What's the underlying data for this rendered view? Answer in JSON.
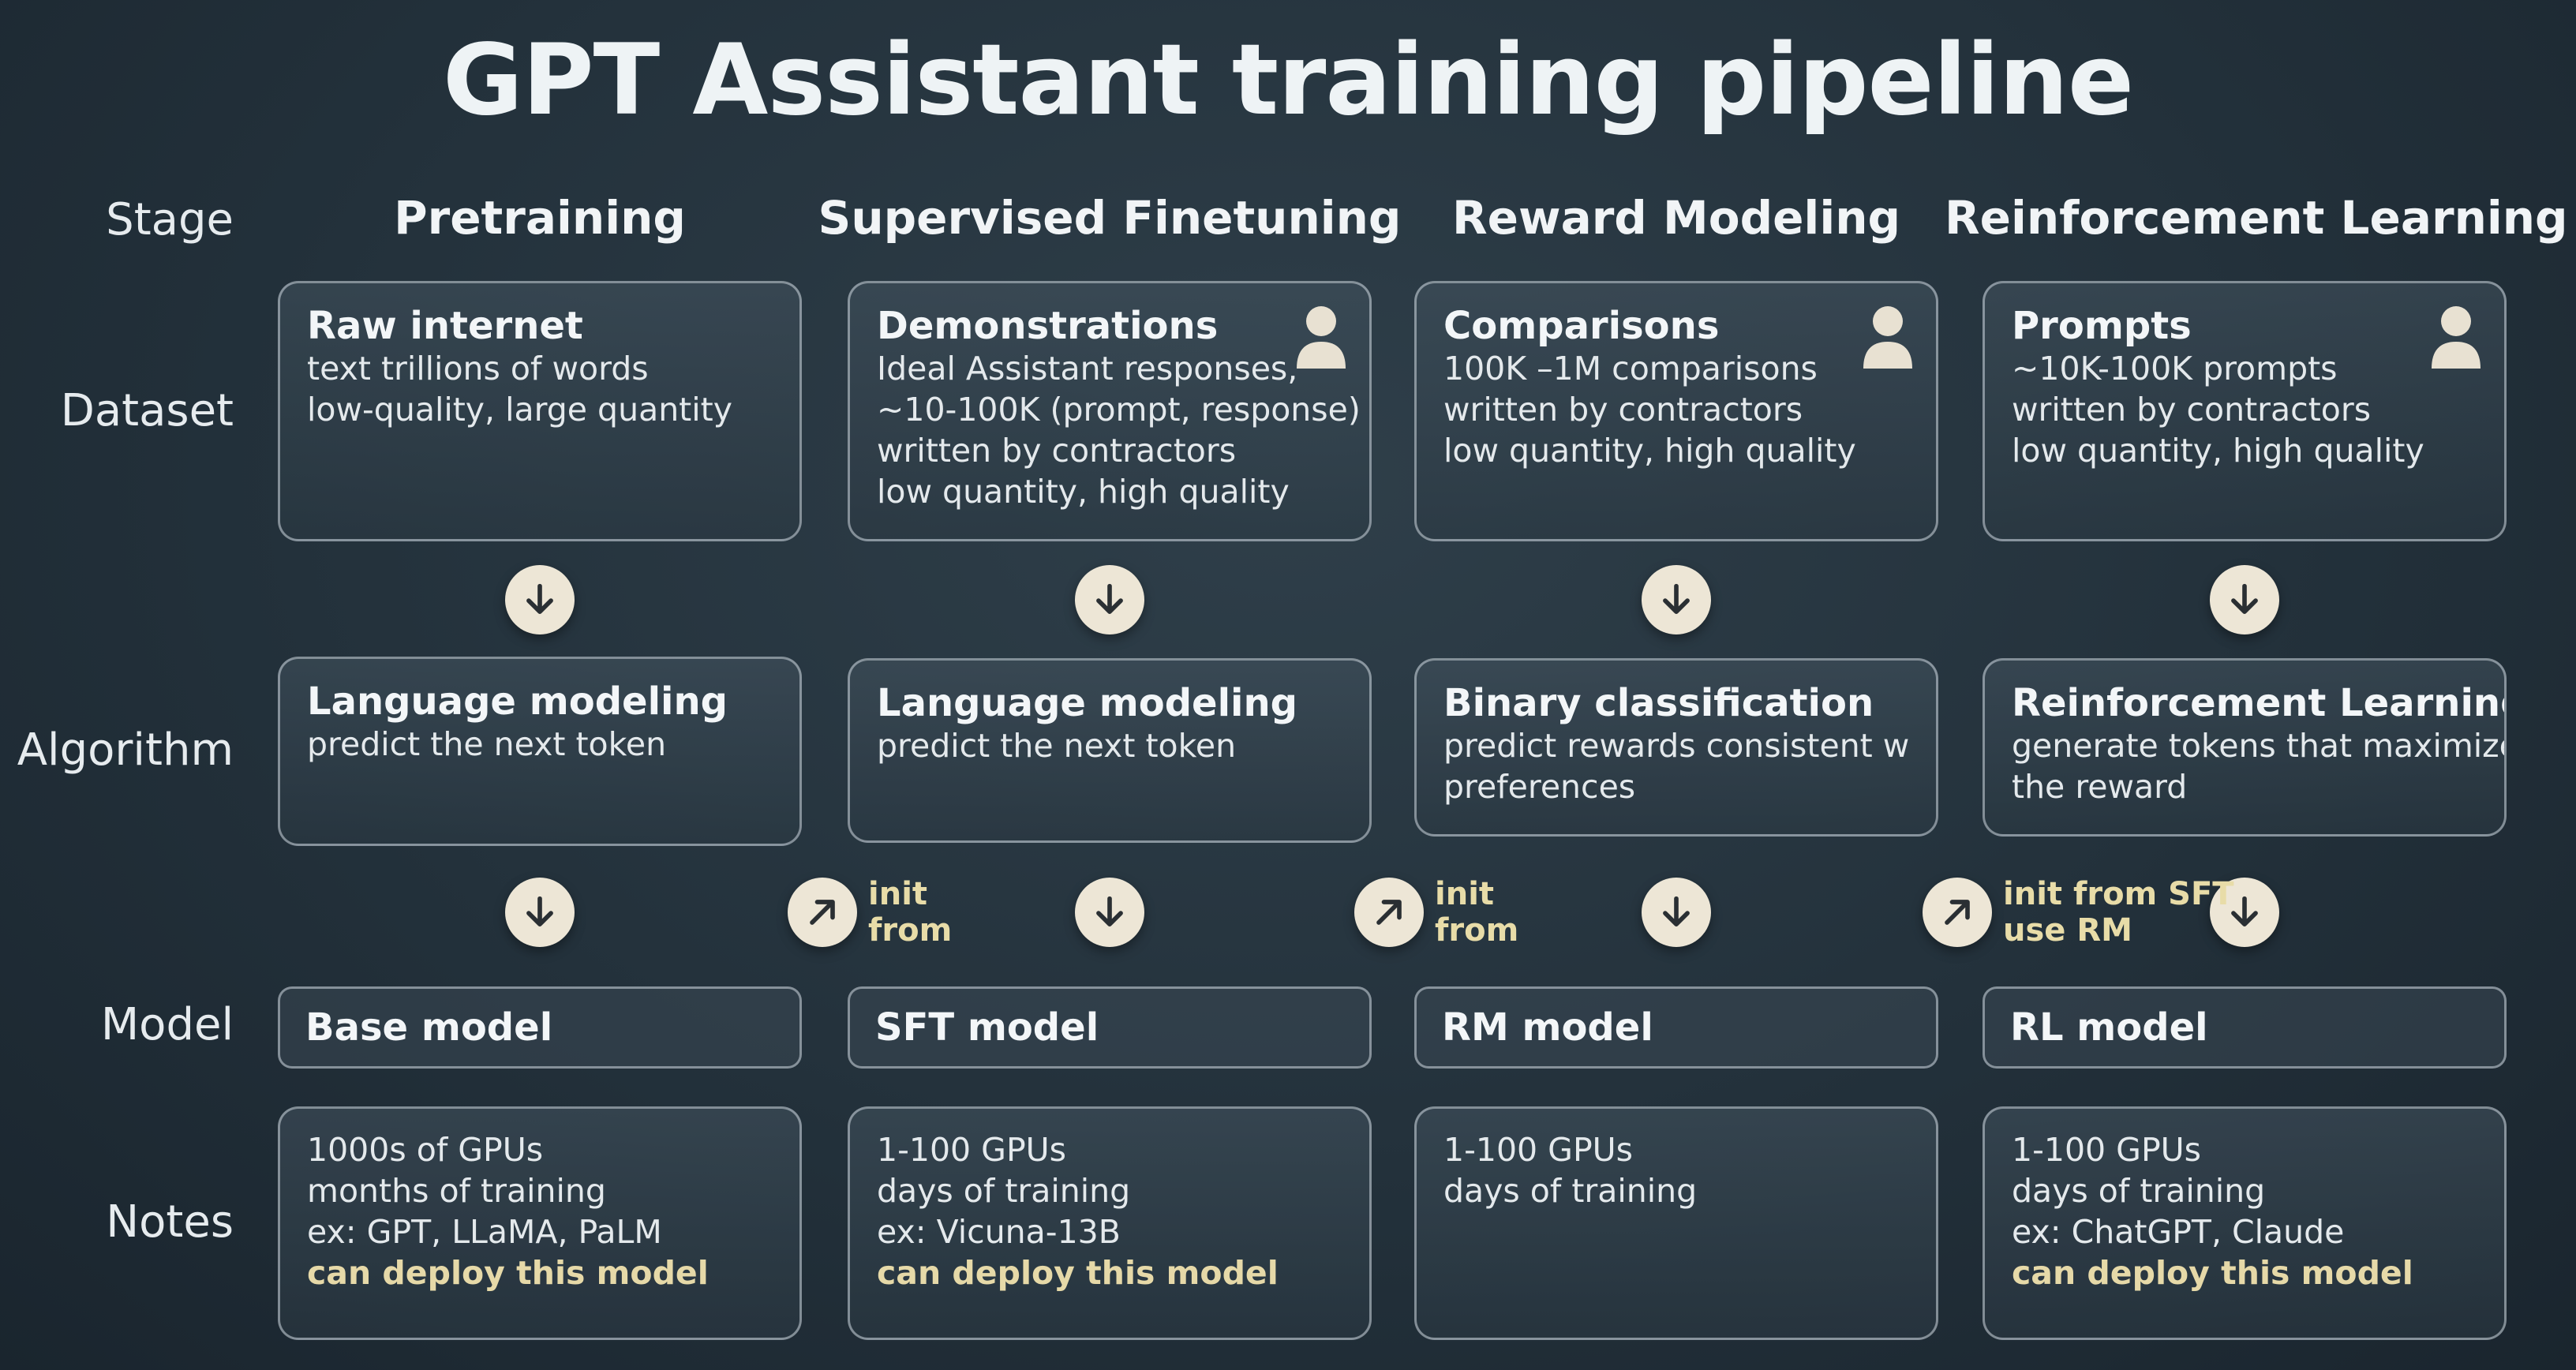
{
  "title": "GPT Assistant training pipeline",
  "row_labels": {
    "stage": "Stage",
    "dataset": "Dataset",
    "algorithm": "Algorithm",
    "model": "Model",
    "notes": "Notes"
  },
  "stages": [
    {
      "name": "Pretraining",
      "dataset": {
        "heading": "Raw internet",
        "lines": [
          "text trillions of words",
          "low-quality, large quantity"
        ]
      },
      "algorithm": {
        "heading": "Language modeling",
        "lines": [
          "predict the next token"
        ]
      },
      "model": "Base model",
      "notes": {
        "lines": [
          "1000s of GPUs",
          "months of training",
          "ex: GPT, LLaMA, PaLM"
        ],
        "highlight": "can deploy this model"
      }
    },
    {
      "name": "Supervised Finetuning",
      "dataset": {
        "heading": "Demonstrations",
        "lines": [
          "Ideal Assistant responses,",
          "~10-100K (prompt, response)",
          "written by contractors",
          "low quantity, high quality"
        ]
      },
      "algorithm": {
        "heading": "Language modeling",
        "lines": [
          "predict the next token"
        ]
      },
      "model": "SFT model",
      "notes": {
        "lines": [
          "1-100 GPUs",
          "days of training",
          "ex: Vicuna-13B"
        ],
        "highlight": "can deploy this model"
      },
      "init_label": [
        "init",
        "from"
      ]
    },
    {
      "name": "Reward Modeling",
      "dataset": {
        "heading": "Comparisons",
        "lines": [
          "100K –1M comparisons",
          "written by contractors",
          "low quantity, high quality"
        ]
      },
      "algorithm": {
        "heading": "Binary classification",
        "lines": [
          "predict rewards consistent w",
          "preferences"
        ]
      },
      "model": "RM model",
      "notes": {
        "lines": [
          "1-100 GPUs",
          "days of training"
        ],
        "highlight": ""
      },
      "init_label": [
        "init",
        "from"
      ]
    },
    {
      "name": "Reinforcement Learning",
      "dataset": {
        "heading": "Prompts",
        "lines": [
          "~10K-100K prompts",
          "written by contractors",
          "low quantity, high quality"
        ]
      },
      "algorithm": {
        "heading": "Reinforcement Learning",
        "lines": [
          "generate tokens that maximize",
          "the reward"
        ]
      },
      "model": "RL model",
      "notes": {
        "lines": [
          "1-100 GPUs",
          "days of training",
          "ex: ChatGPT, Claude"
        ],
        "highlight": "can deploy this model"
      },
      "init_label": [
        "init from SFT",
        "use RM"
      ]
    }
  ],
  "icons": {
    "down_arrow": "arrow-down-icon",
    "diag_arrow": "arrow-up-right-icon",
    "human": "person-icon"
  },
  "colors": {
    "background": "#23313b",
    "highlight_text": "#e6d9a8",
    "circle_fill": "#ede6d6"
  }
}
